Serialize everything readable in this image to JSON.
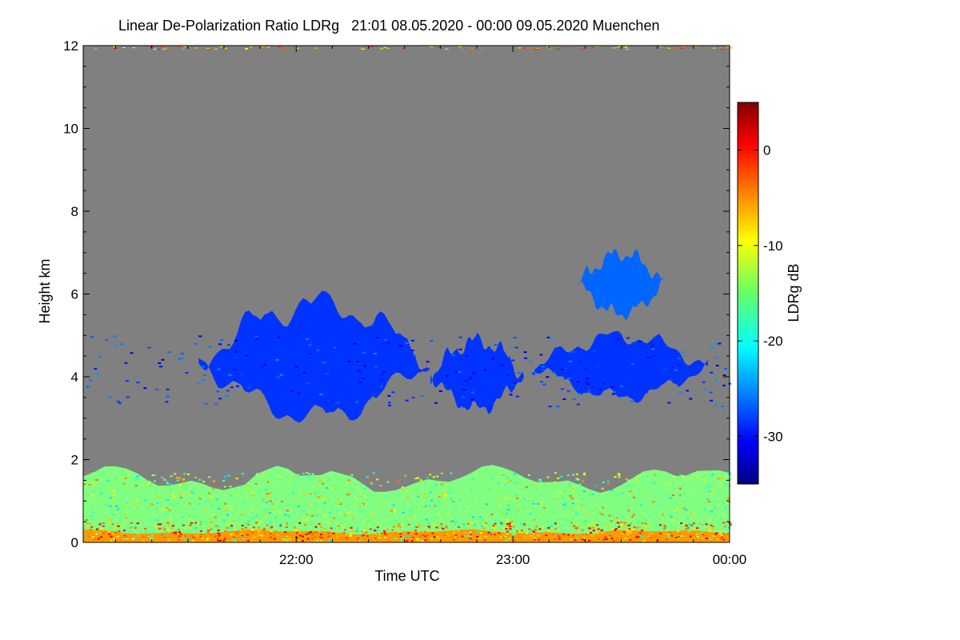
{
  "chart_data": {
    "type": "heatmap",
    "title": "Linear De-Polarization Ratio LDRg   21:01 08.05.2020 - 00:00 09.05.2020 Muenchen",
    "xlabel": "Time UTC",
    "ylabel": "Height km",
    "x_ticks": [
      "22:00",
      "23:00",
      "00:00"
    ],
    "x_tick_values_hours_utc": [
      22.0,
      23.0,
      24.0
    ],
    "xlim_hours_utc": [
      21.017,
      24.0
    ],
    "y_ticks": [
      "0",
      "2",
      "4",
      "6",
      "8",
      "10",
      "12"
    ],
    "y_tick_values": [
      0,
      2,
      4,
      6,
      8,
      10,
      12
    ],
    "ylim_km": [
      0,
      12
    ],
    "background_color": "#808080",
    "colorbar": {
      "label": "LDRg dB",
      "range": [
        -35,
        5
      ],
      "ticks": [
        "0",
        "-10",
        "-20",
        "-30"
      ],
      "tick_values": [
        0,
        -10,
        -20,
        -30
      ],
      "colormap": "jet"
    },
    "features": [
      {
        "name": "mid-level cloud layer",
        "time_start_h": 21.55,
        "time_end_h": 22.62,
        "height_bottom_km": 3.0,
        "height_top_km": 5.8,
        "ldr_db": -28
      },
      {
        "name": "cloud segment 2",
        "time_start_h": 22.62,
        "time_end_h": 23.05,
        "height_bottom_km": 3.2,
        "height_top_km": 4.9,
        "ldr_db": -28
      },
      {
        "name": "cloud segment 3",
        "time_start_h": 23.1,
        "time_end_h": 23.9,
        "height_bottom_km": 3.5,
        "height_top_km": 5.0,
        "ldr_db": -28
      },
      {
        "name": "upper cloud streak",
        "time_start_h": 23.3,
        "time_end_h": 23.7,
        "height_bottom_km": 5.5,
        "height_top_km": 7.0,
        "ldr_db": -26
      },
      {
        "name": "boundary layer aerosol",
        "time_start_h": 21.017,
        "time_end_h": 24.0,
        "height_bottom_km": 0.0,
        "height_top_km": 1.8,
        "ldr_db": -15
      },
      {
        "name": "near-ground layer",
        "time_start_h": 21.017,
        "time_end_h": 24.0,
        "height_bottom_km": 0.0,
        "height_top_km": 0.3,
        "ldr_db": -6
      }
    ]
  }
}
